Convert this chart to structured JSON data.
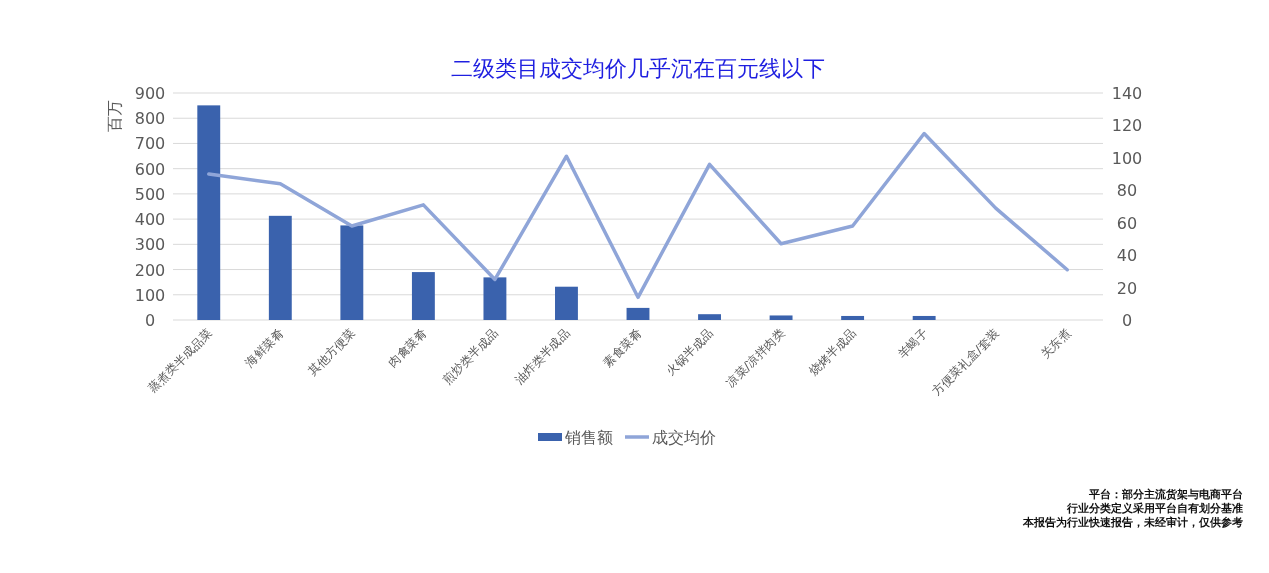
{
  "chart_data": {
    "type": "bar",
    "title": "二级类目成交均价几乎沉在百元线以下",
    "ylabel": "百万",
    "categories": [
      "蒸煮类半成品菜",
      "海鲜菜肴",
      "其他方便菜",
      "肉禽菜肴",
      "煎炒类半成品",
      "油炸类半成品",
      "素食菜肴",
      "火锅半成品",
      "凉菜/凉拌肉类",
      "烧烤半成品",
      "羊蝎子",
      "方便菜礼盒/套装",
      "关东煮"
    ],
    "series": [
      {
        "name": "销售额",
        "color": "#3a62ad",
        "values": [
          851,
          413,
          375,
          190,
          169,
          132,
          48,
          23,
          18,
          16,
          16,
          0,
          0
        ]
      },
      {
        "name": "成交均价",
        "type": "line",
        "axis": "y2",
        "color": "#8fa5d8",
        "values": [
          90,
          84,
          58,
          71,
          25,
          101,
          14,
          96,
          47,
          58,
          115,
          69,
          31
        ]
      }
    ],
    "ylim": [
      0,
      900
    ],
    "yticks": [
      0,
      100,
      200,
      300,
      400,
      500,
      600,
      700,
      800,
      900
    ],
    "y2lim": [
      0,
      140
    ],
    "y2ticks": [
      0,
      20,
      40,
      60,
      80,
      100,
      120,
      140
    ],
    "grid": "y",
    "legend": "bottom",
    "annotations": [
      "平台：部分主流货架与电商平台",
      "行业分类定义采用平台自有划分基准",
      "本报告为行业快速报告，未经审计，仅供参考"
    ]
  }
}
